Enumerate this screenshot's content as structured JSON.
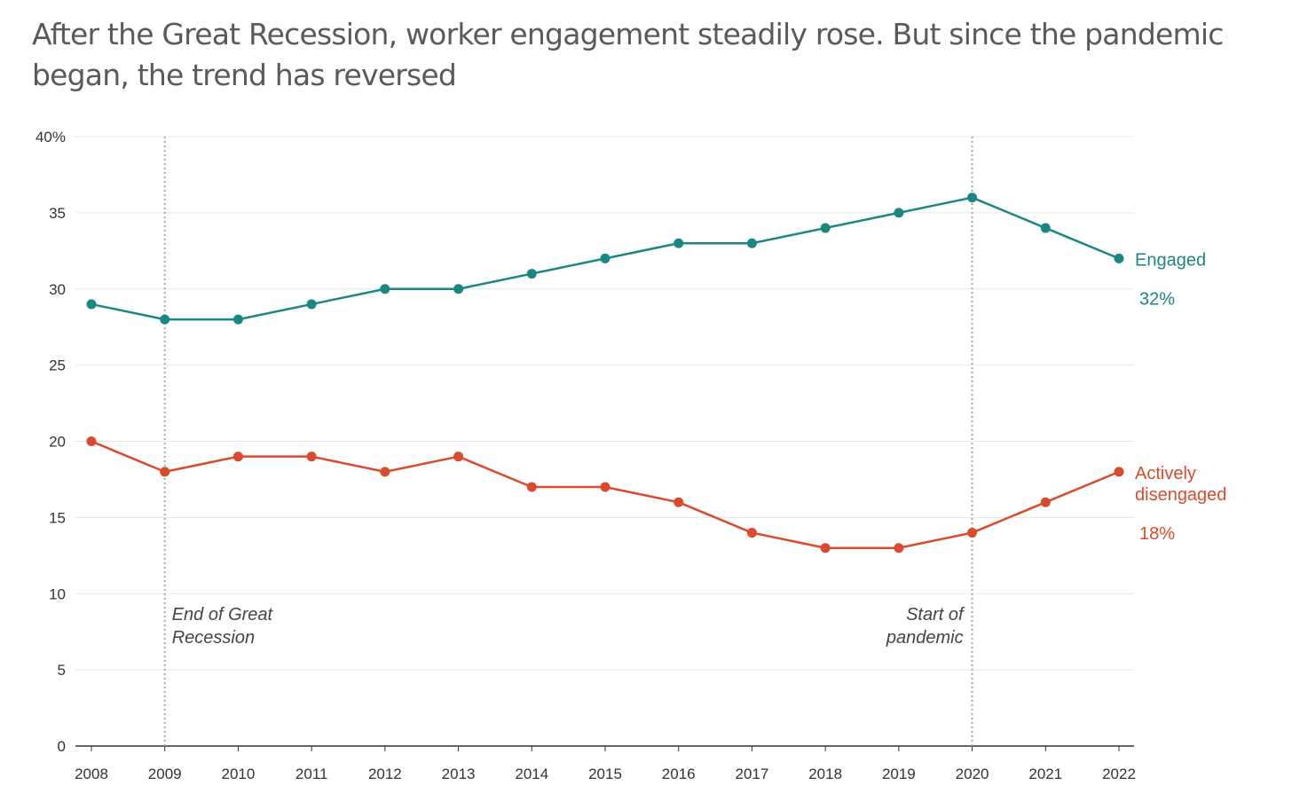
{
  "chart_data": {
    "type": "line",
    "title": "After the Great Recession, worker engagement steadily rose. But since the pandemic began, the trend has reversed",
    "xlabel": "",
    "ylabel": "",
    "x": [
      2008,
      2009,
      2010,
      2011,
      2012,
      2013,
      2014,
      2015,
      2016,
      2017,
      2018,
      2019,
      2020,
      2021,
      2022
    ],
    "x_tick_labels": [
      "2008",
      "2009",
      "2010",
      "2011",
      "2012",
      "2013",
      "2014",
      "2015",
      "2016",
      "2017",
      "2018",
      "2019",
      "2020",
      "2021",
      "2022"
    ],
    "ylim": [
      0,
      40
    ],
    "y_ticks": [
      0,
      5,
      10,
      15,
      20,
      25,
      30,
      35,
      40
    ],
    "y_tick_labels": [
      "0",
      "5",
      "10",
      "15",
      "20",
      "25",
      "30",
      "35",
      "40%"
    ],
    "grid": true,
    "series": [
      {
        "name": "Engaged",
        "end_label": "32%",
        "color": "#1b8782",
        "values": [
          29,
          28,
          28,
          29,
          30,
          30,
          31,
          32,
          33,
          33,
          34,
          35,
          36,
          34,
          32
        ]
      },
      {
        "name": "Actively disengaged",
        "name_lines": [
          "Actively",
          "disengaged"
        ],
        "end_label": "18%",
        "color": "#da4a2c",
        "values": [
          20,
          18,
          19,
          19,
          18,
          19,
          17,
          17,
          16,
          14,
          13,
          13,
          14,
          16,
          18
        ]
      }
    ],
    "annotations": [
      {
        "x": 2009,
        "lines": [
          "End of Great",
          "Recession"
        ]
      },
      {
        "x": 2020,
        "lines": [
          "Start of",
          "pandemic"
        ]
      }
    ]
  }
}
